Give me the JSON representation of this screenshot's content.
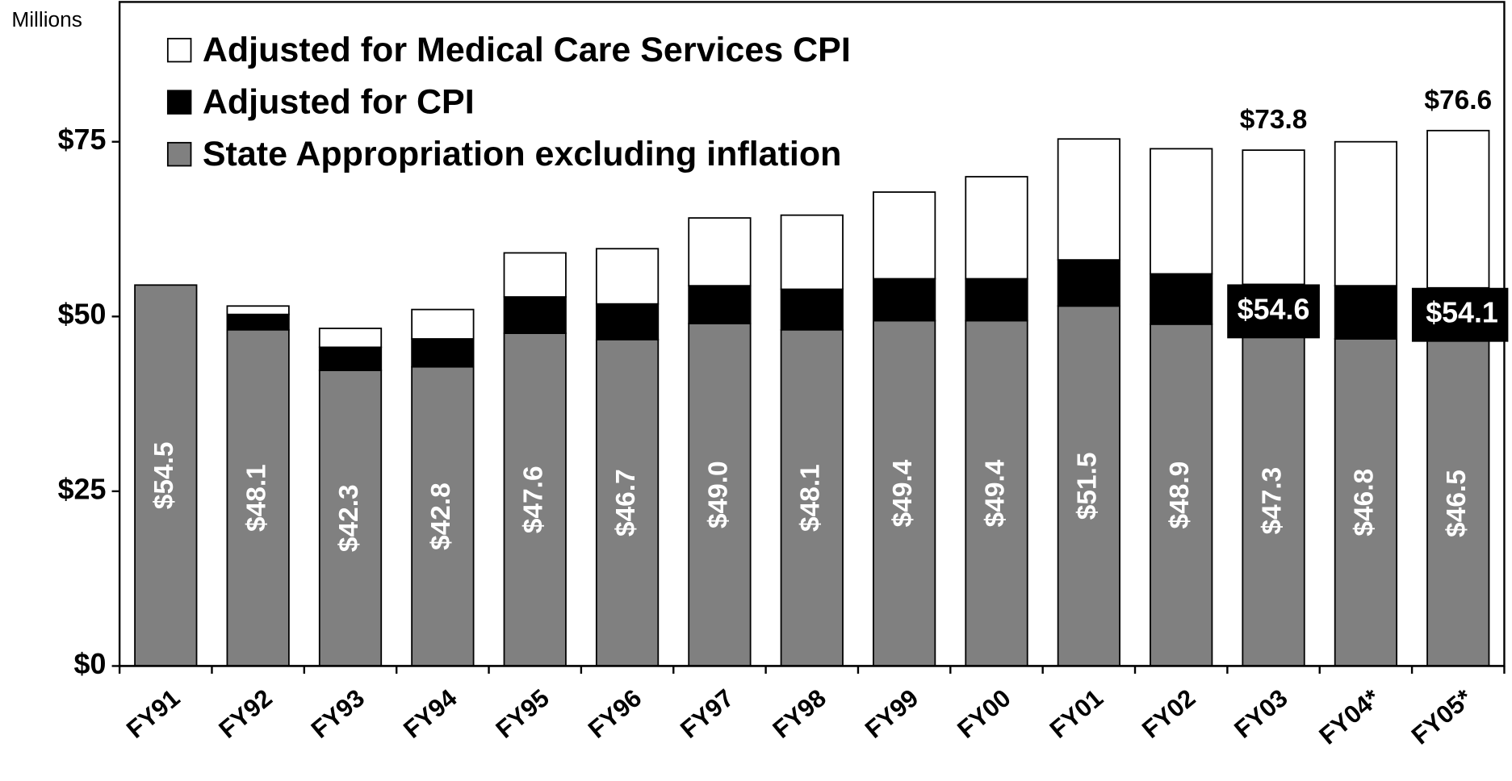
{
  "chart_data": {
    "type": "stacked_bar",
    "unit_label": "Millions",
    "categories": [
      "FY91",
      "FY92",
      "FY93",
      "FY94",
      "FY95",
      "FY96",
      "FY97",
      "FY98",
      "FY99",
      "FY00",
      "FY01",
      "FY02",
      "FY03",
      "FY04*",
      "FY05*"
    ],
    "series": [
      {
        "name": "State Appropriation excluding inflation",
        "color": "#808080",
        "values": [
          54.5,
          48.1,
          42.3,
          42.8,
          47.6,
          46.7,
          49.0,
          48.1,
          49.4,
          49.4,
          51.5,
          48.9,
          47.3,
          46.8,
          46.5
        ],
        "value_labels": [
          "$54.5",
          "$48.1",
          "$42.3",
          "$42.8",
          "$47.6",
          "$46.7",
          "$49.0",
          "$48.1",
          "$49.4",
          "$49.4",
          "$51.5",
          "$48.9",
          "$47.3",
          "$46.8",
          "$46.5"
        ]
      },
      {
        "name": "Adjusted for CPI",
        "color": "#000000",
        "values": [
          0,
          2.2,
          3.3,
          4.0,
          5.2,
          5.1,
          5.4,
          5.8,
          6.0,
          6.0,
          6.6,
          7.2,
          7.3,
          7.6,
          7.6
        ]
      },
      {
        "name": "Adjusted for Medical Care Services CPI",
        "color": "#ffffff",
        "values": [
          0,
          1.2,
          2.7,
          4.2,
          6.3,
          7.9,
          9.7,
          10.6,
          12.4,
          14.6,
          17.3,
          17.9,
          19.2,
          20.6,
          22.5
        ]
      }
    ],
    "cpi_total_labels": [
      {
        "category": "FY03",
        "value": 54.6,
        "label": "$54.6"
      },
      {
        "category": "FY05*",
        "value": 54.1,
        "label": "$54.1"
      }
    ],
    "total_labels": [
      {
        "category": "FY03",
        "value": 73.8,
        "label": "$73.8"
      },
      {
        "category": "FY05*",
        "value": 76.6,
        "label": "$76.6"
      }
    ],
    "ylim": [
      0,
      95
    ],
    "yticks": [
      {
        "value": 0,
        "label": "$0"
      },
      {
        "value": 25,
        "label": "$25"
      },
      {
        "value": 50,
        "label": "$50"
      },
      {
        "value": 75,
        "label": "$75"
      }
    ],
    "legend": "upper left"
  }
}
